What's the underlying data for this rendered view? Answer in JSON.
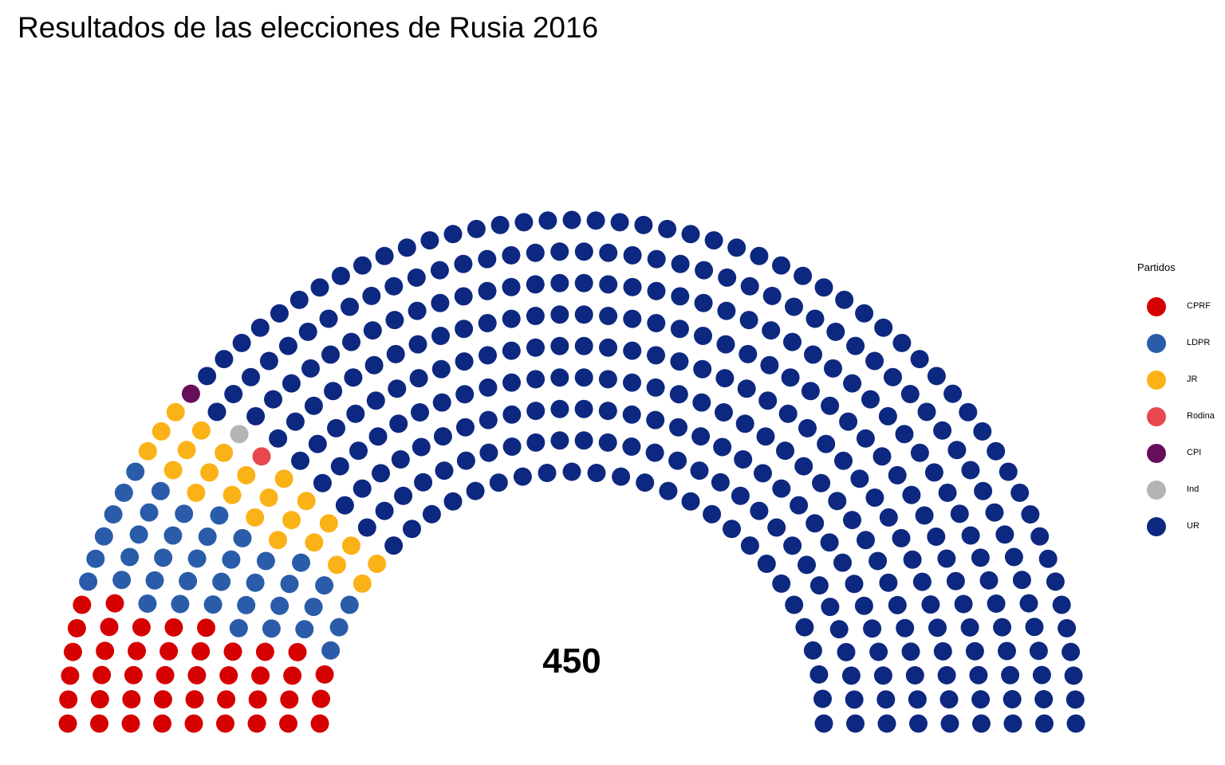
{
  "chart_data": {
    "type": "parliament",
    "title": "Resultados de las elecciones de Rusia 2016",
    "total_label": "450",
    "legend_title": "Partidos",
    "series": [
      {
        "name": "CPRF",
        "seats": 42,
        "color": "#D50000"
      },
      {
        "name": "LDPR",
        "seats": 39,
        "color": "#2A5CAA"
      },
      {
        "name": "JR",
        "seats": 23,
        "color": "#FBB217"
      },
      {
        "name": "Rodina",
        "seats": 1,
        "color": "#E8474F"
      },
      {
        "name": "CPI",
        "seats": 1,
        "color": "#660E5A"
      },
      {
        "name": "Ind",
        "seats": 1,
        "color": "#B5B5B5"
      },
      {
        "name": "UR",
        "seats": 343,
        "color": "#0D2880"
      }
    ]
  }
}
